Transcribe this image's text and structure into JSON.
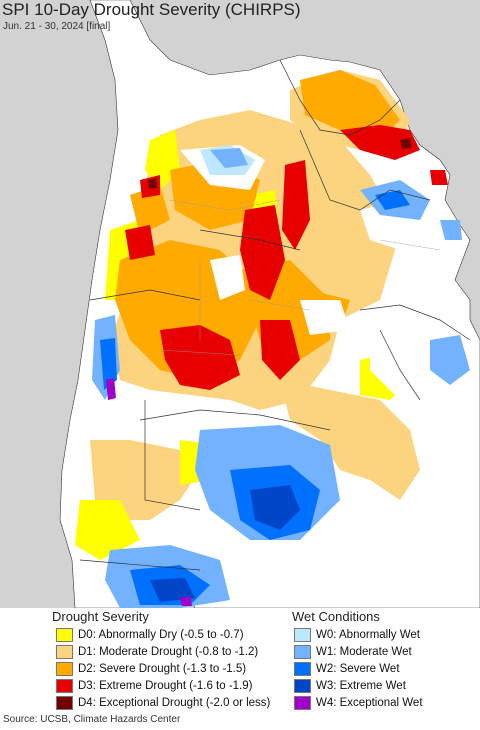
{
  "title": "SPI 10-Day Drought Severity (CHIRPS)",
  "subtitle": "Jun. 21 - 30, 2024 [final]",
  "legend": {
    "drought_heading": "Drought Severity",
    "wet_heading": "Wet Conditions",
    "drought_items": [
      {
        "label": "D0: Abnormally Dry (-0.5 to -0.7)",
        "color": "#ffff00"
      },
      {
        "label": "D1: Moderate Drought (-0.8 to -1.2)",
        "color": "#fcd37f"
      },
      {
        "label": "D2: Severe Drought (-1.3 to -1.5)",
        "color": "#ffaa00"
      },
      {
        "label": "D3: Extreme Drought (-1.6 to -1.9)",
        "color": "#e60000"
      },
      {
        "label": "D4: Exceptional Drought (-2.0 or less)",
        "color": "#730000"
      }
    ],
    "wet_items": [
      {
        "label": "W0: Abnormally Wet",
        "color": "#bee8ff"
      },
      {
        "label": "W1: Moderate Wet",
        "color": "#73b2ff"
      },
      {
        "label": "W2: Severe Wet",
        "color": "#0070ff"
      },
      {
        "label": "W3: Extreme Wet",
        "color": "#0046c8"
      },
      {
        "label": "W4: Exceptional Wet",
        "color": "#a000c8"
      }
    ]
  },
  "source": "Source: UCSB, Climate Hazards Center",
  "colors": {
    "outside": "#d2d2d2",
    "no_data_land": "#ffffff",
    "border": "#333333"
  }
}
